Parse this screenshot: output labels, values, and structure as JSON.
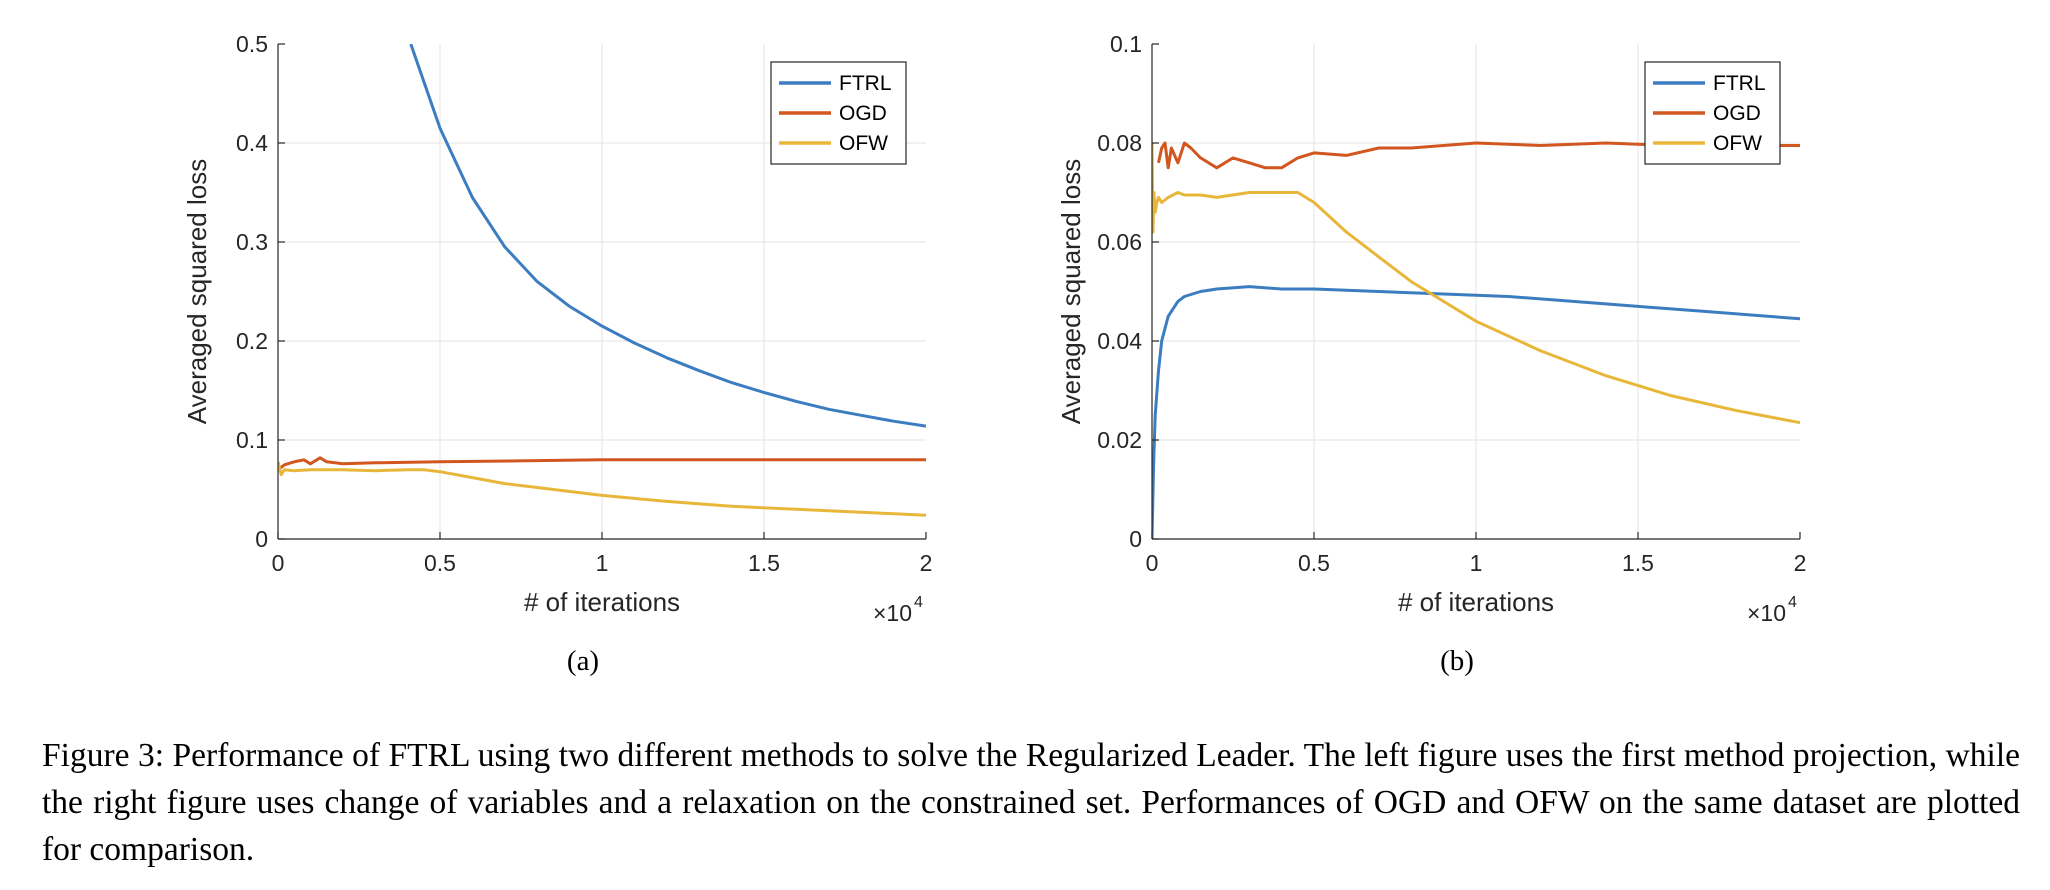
{
  "chart_data": [
    {
      "type": "line",
      "subplot_label": "(a)",
      "xlabel": "# of iterations",
      "ylabel": "Averaged squared loss",
      "x_exponent_label": "×10",
      "x_exponent_power": "4",
      "xlim": [
        0,
        2
      ],
      "ylim": [
        0,
        0.5
      ],
      "xticks": [
        "0",
        "0.5",
        "1",
        "1.5",
        "2"
      ],
      "yticks": [
        "0",
        "0.1",
        "0.2",
        "0.3",
        "0.4",
        "0.5"
      ],
      "grid": true,
      "legend_position": "top-right",
      "series": [
        {
          "name": "FTRL",
          "color": "#3b7dc0",
          "x": [
            0.41,
            0.5,
            0.6,
            0.7,
            0.8,
            0.9,
            1.0,
            1.1,
            1.2,
            1.3,
            1.4,
            1.5,
            1.6,
            1.7,
            1.8,
            1.9,
            2.0
          ],
          "y": [
            0.5,
            0.415,
            0.345,
            0.295,
            0.26,
            0.235,
            0.215,
            0.198,
            0.183,
            0.17,
            0.158,
            0.148,
            0.139,
            0.131,
            0.125,
            0.119,
            0.114
          ]
        },
        {
          "name": "OGD",
          "color": "#d2561f",
          "x": [
            0,
            0.02,
            0.05,
            0.08,
            0.1,
            0.13,
            0.15,
            0.2,
            0.3,
            0.5,
            1.0,
            1.5,
            2.0
          ],
          "y": [
            0.07,
            0.075,
            0.078,
            0.08,
            0.076,
            0.082,
            0.078,
            0.076,
            0.077,
            0.078,
            0.08,
            0.08,
            0.08
          ]
        },
        {
          "name": "OFW",
          "color": "#e8b73a",
          "x": [
            0,
            0.01,
            0.02,
            0.05,
            0.1,
            0.2,
            0.3,
            0.4,
            0.45,
            0.5,
            0.6,
            0.7,
            0.8,
            1.0,
            1.2,
            1.4,
            1.6,
            1.8,
            2.0
          ],
          "y": [
            0.078,
            0.065,
            0.07,
            0.069,
            0.07,
            0.07,
            0.069,
            0.07,
            0.07,
            0.068,
            0.062,
            0.056,
            0.052,
            0.044,
            0.038,
            0.033,
            0.03,
            0.027,
            0.024
          ]
        }
      ]
    },
    {
      "type": "line",
      "subplot_label": "(b)",
      "xlabel": "# of iterations",
      "ylabel": "Averaged squared loss",
      "x_exponent_label": "×10",
      "x_exponent_power": "4",
      "xlim": [
        0,
        2
      ],
      "ylim": [
        0,
        0.1
      ],
      "xticks": [
        "0",
        "0.5",
        "1",
        "1.5",
        "2"
      ],
      "yticks": [
        "0",
        "0.02",
        "0.04",
        "0.06",
        "0.08",
        "0.1"
      ],
      "grid": true,
      "legend_position": "top-right",
      "series": [
        {
          "name": "FTRL",
          "color": "#3b7dc0",
          "x": [
            0,
            0.005,
            0.01,
            0.02,
            0.03,
            0.05,
            0.08,
            0.1,
            0.15,
            0.2,
            0.3,
            0.4,
            0.5,
            0.7,
            0.9,
            1.1,
            1.3,
            1.5,
            1.7,
            1.9,
            2.0
          ],
          "y": [
            0,
            0.015,
            0.025,
            0.034,
            0.04,
            0.045,
            0.048,
            0.049,
            0.05,
            0.0505,
            0.051,
            0.0505,
            0.0505,
            0.05,
            0.0495,
            0.049,
            0.048,
            0.047,
            0.046,
            0.045,
            0.0445
          ]
        },
        {
          "name": "OGD",
          "color": "#d2561f",
          "x": [
            0.02,
            0.03,
            0.04,
            0.05,
            0.06,
            0.08,
            0.1,
            0.12,
            0.15,
            0.2,
            0.25,
            0.3,
            0.35,
            0.4,
            0.45,
            0.5,
            0.6,
            0.7,
            0.8,
            0.9,
            1.0,
            1.2,
            1.4,
            1.6,
            1.8,
            2.0
          ],
          "y": [
            0.076,
            0.079,
            0.08,
            0.075,
            0.079,
            0.076,
            0.08,
            0.079,
            0.077,
            0.075,
            0.077,
            0.076,
            0.075,
            0.075,
            0.077,
            0.078,
            0.0775,
            0.079,
            0.079,
            0.0795,
            0.08,
            0.0795,
            0.08,
            0.0795,
            0.0795,
            0.0795
          ]
        },
        {
          "name": "OFW",
          "color": "#e8b73a",
          "x": [
            0,
            0.003,
            0.006,
            0.01,
            0.015,
            0.02,
            0.03,
            0.05,
            0.08,
            0.1,
            0.15,
            0.2,
            0.3,
            0.4,
            0.45,
            0.5,
            0.6,
            0.7,
            0.8,
            0.9,
            1.0,
            1.2,
            1.4,
            1.6,
            1.8,
            2.0
          ],
          "y": [
            0.08,
            0.062,
            0.07,
            0.066,
            0.068,
            0.069,
            0.068,
            0.069,
            0.07,
            0.0695,
            0.0695,
            0.069,
            0.07,
            0.07,
            0.07,
            0.068,
            0.062,
            0.057,
            0.052,
            0.048,
            0.044,
            0.038,
            0.033,
            0.029,
            0.026,
            0.0235
          ]
        }
      ]
    }
  ],
  "caption": "Figure 3: Performance of FTRL using two different methods to solve the Regularized Leader. The left figure uses the first method projection, while the right figure uses change of variables and a relaxation on the constrained set. Performances of OGD and OFW on the same dataset are plotted for comparison."
}
